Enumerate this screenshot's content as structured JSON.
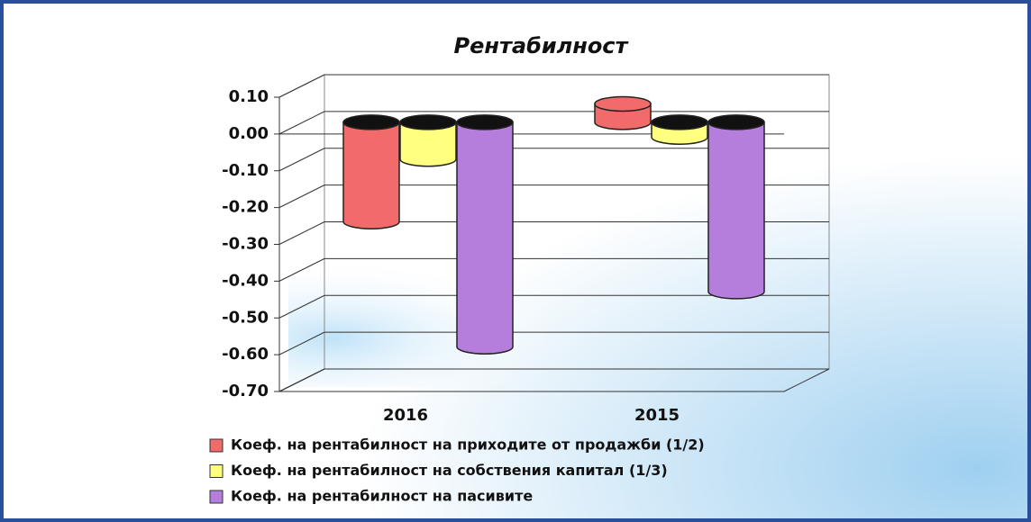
{
  "chart_data": {
    "type": "bar3d",
    "title": "Рентабилност",
    "categories": [
      "2016",
      "2015"
    ],
    "series": [
      {
        "name": "Коеф. на рентабилност на приходите от продажби (1/2)",
        "color": "#f26b6b",
        "values": [
          -0.27,
          0.05
        ]
      },
      {
        "name": "Коеф. на рентабилност на собствения капитал (1/3)",
        "color": "#ffff80",
        "values": [
          -0.1,
          -0.04
        ]
      },
      {
        "name": "Коеф. на рентабилност на пасивите",
        "color": "#b57edc",
        "values": [
          -0.61,
          -0.46
        ]
      }
    ],
    "ylim": [
      -0.7,
      0.1
    ],
    "yticks": [
      {
        "value": 0.1,
        "label": "0.10"
      },
      {
        "value": 0,
        "label": "0.00"
      },
      {
        "value": -0.1,
        "label": "-0.10"
      },
      {
        "value": -0.2,
        "label": "-0.20"
      },
      {
        "value": -0.3,
        "label": "-0.30"
      },
      {
        "value": -0.4,
        "label": "-0.40"
      },
      {
        "value": -0.5,
        "label": "-0.50"
      },
      {
        "value": -0.6,
        "label": "-0.60"
      },
      {
        "value": -0.7,
        "label": "-0.70"
      }
    ],
    "grid": true
  }
}
